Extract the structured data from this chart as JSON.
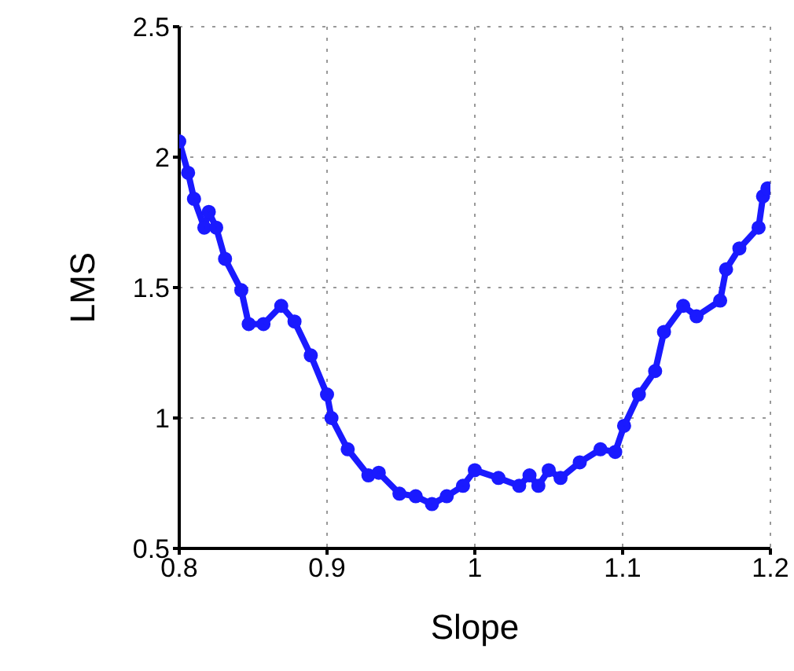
{
  "chart_data": {
    "type": "line",
    "xlabel": "Slope",
    "ylabel": "LMS",
    "x": [
      0.8,
      0.806,
      0.81,
      0.817,
      0.82,
      0.825,
      0.831,
      0.842,
      0.847,
      0.857,
      0.869,
      0.878,
      0.889,
      0.9,
      0.903,
      0.914,
      0.928,
      0.935,
      0.949,
      0.96,
      0.971,
      0.981,
      0.992,
      1.0,
      1.016,
      1.03,
      1.037,
      1.043,
      1.05,
      1.058,
      1.071,
      1.085,
      1.095,
      1.101,
      1.111,
      1.122,
      1.128,
      1.141,
      1.15,
      1.166,
      1.17,
      1.179,
      1.192,
      1.195,
      1.198
    ],
    "series": [
      {
        "color": "#1a1aff",
        "values": [
          2.06,
          1.94,
          1.84,
          1.73,
          1.79,
          1.73,
          1.61,
          1.49,
          1.36,
          1.36,
          1.43,
          1.37,
          1.24,
          1.09,
          1.0,
          0.88,
          0.78,
          0.79,
          0.71,
          0.7,
          0.67,
          0.7,
          0.74,
          0.8,
          0.77,
          0.74,
          0.78,
          0.74,
          0.8,
          0.77,
          0.83,
          0.88,
          0.87,
          0.97,
          1.09,
          1.18,
          1.33,
          1.43,
          1.39,
          1.45,
          1.57,
          1.65,
          1.73,
          1.85,
          1.88
        ]
      }
    ],
    "xlim": [
      0.8,
      1.2
    ],
    "xticks": [
      0.8,
      0.9,
      1,
      1.1,
      1.2
    ],
    "ylim": [
      0.5,
      2.5
    ],
    "yticks": [
      0.5,
      1,
      1.5,
      2,
      2.5
    ],
    "grid": true,
    "marker": "circle",
    "line_style": "solid"
  }
}
